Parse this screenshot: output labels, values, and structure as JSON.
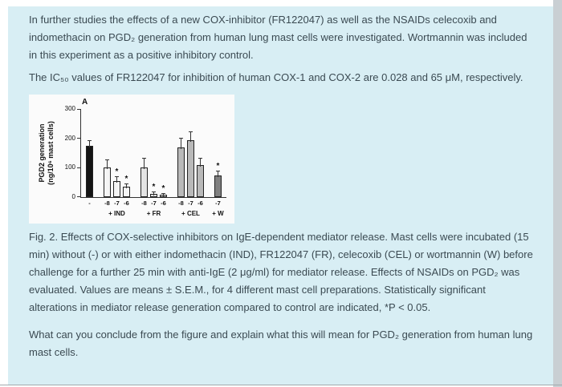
{
  "colors": {
    "panel_bg": "#d8eef4",
    "text": "#3b4a52",
    "chart_bg": "#fbfbfb",
    "scrollbar_track": "#c9cfd3",
    "bottom_border": "#a2a9ad",
    "axis": "#333333"
  },
  "content": {
    "paragraph1": "In further studies the effects of a new COX-inhibitor (FR122047) as well as the NSAIDs celecoxib and indomethacin on PGD₂ generation from human lung mast cells were investigated. Wortmannin was included in this experiment as a positive inhibitory control.",
    "paragraph2": "The IC₅₀ values of FR122047 for inhibition of human COX-1 and COX-2 are 0.028 and 65 μM, respectively.",
    "figure_caption": "Fig. 2. Effects of COX-selective inhibitors on IgE-dependent mediator release. Mast cells were incubated (15 min) without (-) or with either indomethacin (IND), FR122047 (FR), celecoxib (CEL) or wortmannin (W) before challenge for a further 25 min with anti-IgE (2 μg/ml) for mediator release. Effects of NSAIDs on PGD₂ was evaluated. Values are means ± S.E.M., for 4 different mast cell preparations. Statistically significant alterations in mediator release generation compared to control are indicated, *P < 0.05.",
    "question": "What can you conclude from the figure and explain what this will mean for PGD₂ generation from human lung mast cells."
  },
  "chart_data": {
    "type": "bar",
    "panel_label": "A",
    "ylabel_line1": "PGD2 generation",
    "ylabel_line2": "(ng/10⁶ mast cells)",
    "ylim": [
      0,
      300
    ],
    "yticks": [
      0,
      100,
      200,
      300
    ],
    "grid": false,
    "legend": "none",
    "groups": [
      {
        "label": "",
        "treatment": "control (-)",
        "bars": [
          {
            "x": "-",
            "value": 175,
            "err": 15,
            "color": "#141414",
            "sig": false
          }
        ]
      },
      {
        "label": "+ IND",
        "treatment": "indomethacin",
        "bars": [
          {
            "x": "-8",
            "value": 100,
            "err": 25,
            "color": "#f5f5f5",
            "sig": false
          },
          {
            "x": "-7",
            "value": 55,
            "err": 14,
            "color": "#f5f5f5",
            "sig": true
          },
          {
            "x": "-6",
            "value": 35,
            "err": 10,
            "color": "#f5f5f5",
            "sig": true
          }
        ]
      },
      {
        "label": "+ FR",
        "treatment": "FR122047",
        "bars": [
          {
            "x": "-8",
            "value": 101,
            "err": 30,
            "color": "#e4e4e4",
            "sig": false
          },
          {
            "x": "-7",
            "value": 11,
            "err": 5,
            "color": "#e4e4e4",
            "sig": true
          },
          {
            "x": "-6",
            "value": 8,
            "err": 4,
            "color": "#e4e4e4",
            "sig": true
          }
        ]
      },
      {
        "label": "+ CEL",
        "treatment": "celecoxib",
        "bars": [
          {
            "x": "-8",
            "value": 170,
            "err": 30,
            "color": "#b9b9b9",
            "sig": false
          },
          {
            "x": "-7",
            "value": 195,
            "err": 25,
            "color": "#b9b9b9",
            "sig": false
          },
          {
            "x": "-6",
            "value": 110,
            "err": 20,
            "color": "#b9b9b9",
            "sig": false
          }
        ]
      },
      {
        "label": "+ W",
        "treatment": "wortmannin",
        "bars": [
          {
            "x": "-7",
            "value": 75,
            "err": 12,
            "color": "#808080",
            "sig": true
          }
        ]
      }
    ]
  }
}
